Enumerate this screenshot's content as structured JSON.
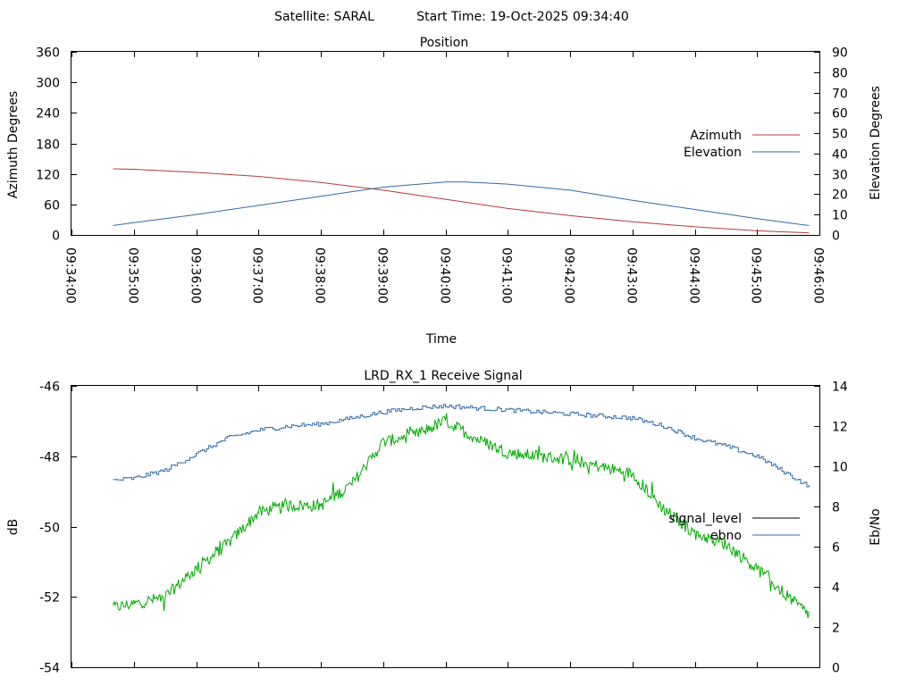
{
  "header": {
    "satellite_label": "Satellite: SARAL",
    "start_time_label": "Start Time: 19-Oct-2025 09:34:40"
  },
  "colors": {
    "azimuth": "#b23a3a",
    "elevation": "#2e6aa8",
    "signal_level_legend": "#000000",
    "signal_level_trace": "#00aa00",
    "ebno": "#2e6aa8"
  },
  "chart_data": [
    {
      "type": "line",
      "title": "Position",
      "xlabel": "Time",
      "ylabel": "Azimuth Degrees",
      "y2label": "Elevation Degrees",
      "xlim": [
        "09:34:00",
        "09:46:00"
      ],
      "ylim": [
        0,
        360
      ],
      "y2lim": [
        0,
        90
      ],
      "x_ticks": [
        "09:34:00",
        "09:35:00",
        "09:36:00",
        "09:37:00",
        "09:38:00",
        "09:39:00",
        "09:40:00",
        "09:41:00",
        "09:42:00",
        "09:43:00",
        "09:44:00",
        "09:45:00",
        "09:46:00"
      ],
      "y_ticks": [
        0,
        60,
        120,
        180,
        240,
        300,
        360
      ],
      "y2_ticks": [
        0,
        10,
        20,
        30,
        40,
        50,
        60,
        70,
        80,
        90
      ],
      "legend_position": "right",
      "series": [
        {
          "name": "Azimuth",
          "axis": "left",
          "x": [
            "09:34:40",
            "09:35:00",
            "09:36:00",
            "09:37:00",
            "09:38:00",
            "09:38:40",
            "09:39:00",
            "09:40:00",
            "09:41:00",
            "09:42:00",
            "09:43:00",
            "09:44:00",
            "09:45:00",
            "09:45:50"
          ],
          "values": [
            130,
            129,
            123,
            115,
            103,
            93,
            88,
            70,
            52,
            38,
            26,
            16,
            8,
            4
          ]
        },
        {
          "name": "Elevation",
          "axis": "right",
          "x": [
            "09:34:40",
            "09:35:00",
            "09:36:00",
            "09:37:00",
            "09:38:00",
            "09:39:00",
            "09:40:00",
            "09:40:20",
            "09:41:00",
            "09:42:00",
            "09:43:00",
            "09:44:00",
            "09:45:00",
            "09:45:50"
          ],
          "values": [
            4.6,
            6,
            10,
            14.5,
            19,
            23.5,
            26,
            26,
            25,
            22,
            17,
            12.5,
            8,
            4.6
          ]
        }
      ]
    },
    {
      "type": "line",
      "title": "LRD_RX_1 Receive Signal",
      "ylabel": "dB",
      "y2label": "Eb/No",
      "xlim": [
        "09:34:00",
        "09:46:00"
      ],
      "ylim": [
        -54,
        -46
      ],
      "y2lim": [
        0,
        14
      ],
      "y_ticks": [
        -54,
        -52,
        -50,
        -48,
        -46
      ],
      "y2_ticks": [
        0,
        2,
        4,
        6,
        8,
        10,
        12,
        14
      ],
      "legend_position": "right",
      "series": [
        {
          "name": "signal_level",
          "axis": "left",
          "x": [
            "09:34:40",
            "09:35:00",
            "09:35:30",
            "09:36:00",
            "09:36:30",
            "09:37:00",
            "09:37:30",
            "09:38:00",
            "09:38:30",
            "09:39:00",
            "09:39:30",
            "09:40:00",
            "09:40:30",
            "09:41:00",
            "09:41:30",
            "09:42:00",
            "09:42:30",
            "09:43:00",
            "09:43:30",
            "09:44:00",
            "09:44:30",
            "09:45:00",
            "09:45:30",
            "09:45:50"
          ],
          "values": [
            -52.3,
            -52.2,
            -52.0,
            -51.2,
            -50.5,
            -49.6,
            -49.4,
            -49.4,
            -48.8,
            -47.6,
            -47.4,
            -47.0,
            -47.5,
            -47.9,
            -48.0,
            -48.1,
            -48.3,
            -48.5,
            -49.5,
            -50.2,
            -50.5,
            -51.2,
            -52.0,
            -52.5
          ]
        },
        {
          "name": "ebno",
          "axis": "right",
          "x": [
            "09:34:40",
            "09:35:00",
            "09:35:30",
            "09:36:00",
            "09:36:30",
            "09:37:00",
            "09:37:30",
            "09:38:00",
            "09:38:30",
            "09:39:00",
            "09:39:30",
            "09:40:00",
            "09:40:30",
            "09:41:00",
            "09:41:30",
            "09:42:00",
            "09:42:30",
            "09:43:00",
            "09:43:30",
            "09:44:00",
            "09:44:30",
            "09:45:00",
            "09:45:30",
            "09:45:50"
          ],
          "values": [
            9.3,
            9.4,
            9.8,
            10.6,
            11.4,
            11.8,
            12.0,
            12.1,
            12.4,
            12.7,
            12.9,
            13.0,
            12.9,
            12.8,
            12.7,
            12.6,
            12.5,
            12.4,
            12.0,
            11.4,
            11.0,
            10.5,
            9.6,
            9.0
          ]
        }
      ]
    }
  ]
}
